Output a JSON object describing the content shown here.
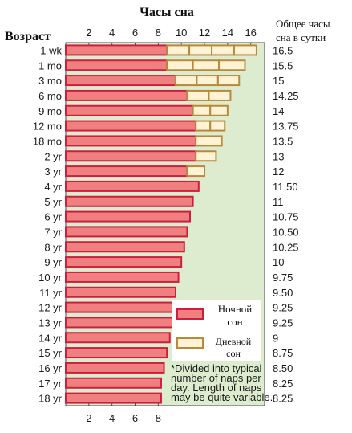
{
  "chart_data": {
    "type": "bar",
    "title": "Часы сна",
    "ylabel": "Возраст",
    "right_header": "Общее часы сна в сутки",
    "x_ticks": [
      2,
      4,
      6,
      8,
      10,
      12,
      14,
      16
    ],
    "x_ticks_bottom": [
      2,
      4,
      6,
      8
    ],
    "xlim": [
      0,
      17.2
    ],
    "categories": [
      "1 wk",
      "1 mo",
      "3 mo",
      "6 mo",
      "9 mo",
      "12 mo",
      "18 mo",
      "2 yr",
      "3 yr",
      "4 yr",
      "5 yr",
      "6 yr",
      "7 yr",
      "8 yr",
      "9 yr",
      "10 yr",
      "11 yr",
      "12 yr",
      "13 yr",
      "14 yr",
      "15 yr",
      "16 yr",
      "17 yr",
      "18 yr"
    ],
    "totals_labels": [
      "16.5",
      "15.5",
      "15",
      "14.25",
      "14",
      "13.75",
      "13.5",
      "13",
      "12",
      "11.50",
      "11",
      "10.75",
      "10.50",
      "10.25",
      "10",
      "9.75",
      "9.50",
      "9.25",
      "9.25",
      "9",
      "8.75",
      "8.50",
      "8.25",
      "8.25"
    ],
    "series": [
      {
        "name": "Ночной сон",
        "color": "#f08080",
        "stroke": "#cc1f3f",
        "values": [
          8.75,
          8.75,
          9.5,
          10.5,
          11,
          11.25,
          11.25,
          11.25,
          10.5,
          11.5,
          11,
          10.75,
          10.5,
          10.25,
          10,
          9.75,
          9.5,
          9.25,
          9.25,
          9,
          8.75,
          8.5,
          8.25,
          8.25
        ]
      },
      {
        "name": "Дневной сон",
        "color": "#fff3d6",
        "stroke": "#b8893a",
        "values": [
          7.75,
          6.75,
          5.5,
          3.75,
          3,
          2.5,
          2.25,
          1.75,
          1.5,
          0,
          0,
          0,
          0,
          0,
          0,
          0,
          0,
          0,
          0,
          0,
          0,
          0,
          0,
          0
        ],
        "segments": [
          4,
          3,
          3,
          2,
          2,
          2,
          1,
          1,
          1,
          0,
          0,
          0,
          0,
          0,
          0,
          0,
          0,
          0,
          0,
          0,
          0,
          0,
          0,
          0
        ]
      }
    ],
    "note": "*Divided into typical number of naps per day. Length of naps may be quite variable.",
    "colors": {
      "background": "#ddeccf",
      "night": "#f08080",
      "night_stroke": "#cc1f3f",
      "day": "#fff3d6",
      "day_stroke": "#b8893a"
    }
  },
  "legend": {
    "night_label": "Ночной сон",
    "day_label": "Дневной сон"
  }
}
